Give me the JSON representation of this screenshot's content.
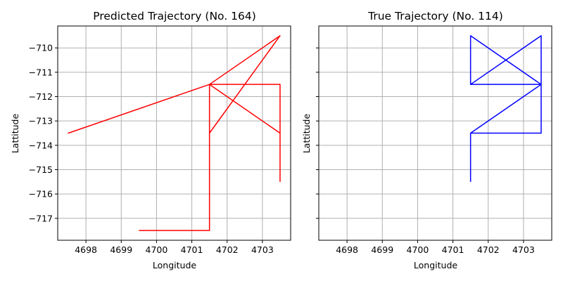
{
  "chart_data": [
    {
      "type": "line",
      "title": "Predicted Trajectory (No. 164)",
      "xlabel": "Longitude",
      "ylabel": "Lattitude",
      "xlim": [
        4697.2,
        4703.8
      ],
      "ylim": [
        -717.9,
        -709.1
      ],
      "xticks": [
        4698,
        4699,
        4700,
        4701,
        4702,
        4703
      ],
      "xticklabels": [
        "4698",
        "4699",
        "4700",
        "4701",
        "4702",
        "4703"
      ],
      "yticks": [
        -710,
        -711,
        -712,
        -713,
        -714,
        -715,
        -716,
        -717
      ],
      "yticklabels": [
        "−710",
        "−711",
        "−712",
        "−713",
        "−714",
        "−715",
        "−716",
        "−717"
      ],
      "grid": true,
      "series": [
        {
          "color": "#ff0000",
          "x": [
            4699.5,
            4701.5,
            4701.5,
            4701.5,
            4703.5,
            4701.5,
            4697.5,
            4701.5,
            4703.5,
            4703.5,
            4701.5,
            4703.5,
            4703.5
          ],
          "y": [
            -717.5,
            -717.5,
            -711.5,
            -713.5,
            -709.5,
            -711.5,
            -713.5,
            -711.5,
            -711.5,
            -713.5,
            -711.5,
            -711.5,
            -715.5
          ]
        }
      ]
    },
    {
      "type": "line",
      "title": "True Trajectory (No. 114)",
      "xlabel": "Longitude",
      "ylabel": "Lattitude",
      "xlim": [
        4697.2,
        4703.8
      ],
      "ylim": [
        -717.9,
        -709.1
      ],
      "xticks": [
        4698,
        4699,
        4700,
        4701,
        4702,
        4703
      ],
      "xticklabels": [
        "4698",
        "4699",
        "4700",
        "4701",
        "4702",
        "4703"
      ],
      "yticks": [
        -710,
        -711,
        -712,
        -713,
        -714,
        -715,
        -716,
        -717
      ],
      "yticklabels": [
        "",
        "",
        "",
        "",
        "",
        "",
        "",
        ""
      ],
      "grid": true,
      "series": [
        {
          "color": "#0000ff",
          "x": [
            4701.5,
            4701.5,
            4703.5,
            4703.5,
            4701.5,
            4701.5,
            4703.5,
            4703.5,
            4701.5,
            4703.5,
            4701.5,
            4701.5,
            4703.5,
            4701.5
          ],
          "y": [
            -715.5,
            -713.5,
            -713.5,
            -711.5,
            -711.5,
            -709.5,
            -711.5,
            -709.5,
            -711.5,
            -711.5,
            -713.5,
            -713.5,
            -711.5,
            -713.5
          ]
        }
      ]
    }
  ]
}
